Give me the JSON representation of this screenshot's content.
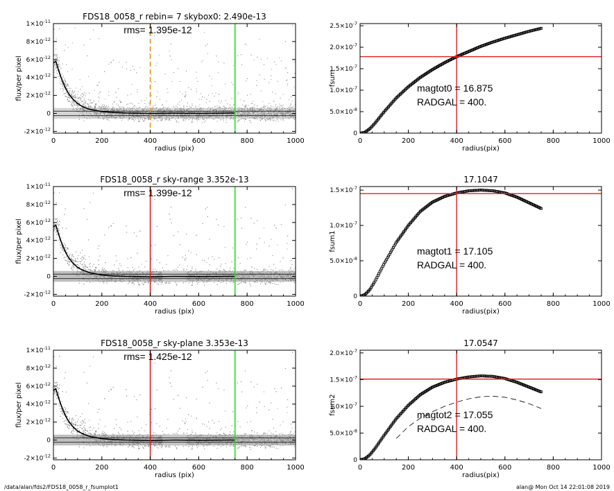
{
  "footer": {
    "path": "/data/alan/fds2/FDS18_0058_r_fsumplot1",
    "user_time": "alan@  Mon Oct 14 22:01:08 2019"
  },
  "colors": {
    "red": "#e02020",
    "green": "#22dd22",
    "orange": "#e39522",
    "points": "#8a8a8a",
    "profile": "#000000"
  },
  "chart_data": [
    {
      "type": "scatter",
      "title": "FDS18_0058_r rebin= 7    skybox0:  2.490e-13",
      "annotation": "rms= 1.395e-12",
      "xlabel": "radius (pix)",
      "ylabel": "flux/per pixel",
      "xlim": [
        0,
        1000
      ],
      "ylim": [
        -2.2e-12,
        1e-11
      ],
      "xticks": [
        "0",
        "200",
        "400",
        "600",
        "800",
        "1000"
      ],
      "yticks": [
        {
          "mant": "-2×10",
          "exp": "-12",
          "v": -2e-12
        },
        {
          "mant": "0",
          "exp": "",
          "v": 0
        },
        {
          "mant": "2×10",
          "exp": "-12",
          "v": 2e-12
        },
        {
          "mant": "4×10",
          "exp": "-12",
          "v": 4e-12
        },
        {
          "mant": "6×10",
          "exp": "-12",
          "v": 6e-12
        },
        {
          "mant": "8×10",
          "exp": "-12",
          "v": 8e-12
        },
        {
          "mant": "1×10",
          "exp": "-11",
          "v": 1e-11
        }
      ],
      "vlines": [
        {
          "x": 400,
          "color": "orange",
          "dashed": true
        },
        {
          "x": 750,
          "color": "green",
          "dashed": false
        }
      ],
      "hlines": [
        2.5e-13,
        -2.5e-13
      ],
      "profile": {
        "x": [
          0,
          10,
          20,
          30,
          40,
          50,
          60,
          80,
          100,
          120,
          150,
          200,
          250,
          300,
          400,
          500,
          600,
          750
        ],
        "y": [
          5.6e-12,
          5.8e-12,
          4.9e-12,
          4.1e-12,
          3.4e-12,
          2.8e-12,
          2.3e-12,
          1.6e-12,
          1.1e-12,
          7.5e-13,
          4.5e-13,
          2e-13,
          1e-13,
          5e-14,
          0.0,
          2e-14,
          0.0,
          5e-14
        ]
      }
    },
    {
      "type": "line",
      "title": "",
      "xlabel": "radius(pix)",
      "ylabel": "fsum",
      "xlim": [
        0,
        1000
      ],
      "ylim": [
        0,
        2.55e-07
      ],
      "xticks": [
        "0",
        "200",
        "400",
        "600",
        "800",
        "1000"
      ],
      "yticks": [
        {
          "mant": "0",
          "exp": "",
          "v": 0
        },
        {
          "mant": "5.0×10",
          "exp": "-8",
          "v": 5e-08
        },
        {
          "mant": "1.0×10",
          "exp": "-7",
          "v": 1e-07
        },
        {
          "mant": "1.5×10",
          "exp": "-7",
          "v": 1.5e-07
        },
        {
          "mant": "2.0×10",
          "exp": "-7",
          "v": 2e-07
        },
        {
          "mant": "2.5×10",
          "exp": "-7",
          "v": 2.5e-07
        }
      ],
      "text_lines": [
        "magtot0 =  16.875",
        "RADGAL =    400."
      ],
      "vline": 400,
      "hline": 1.78e-07,
      "curve": {
        "x": [
          0,
          20,
          40,
          60,
          80,
          100,
          150,
          200,
          250,
          300,
          350,
          400,
          450,
          500,
          550,
          600,
          650,
          700,
          750
        ],
        "y": [
          0,
          2e-09,
          1e-08,
          2.2e-08,
          3.6e-08,
          5e-08,
          8.2e-08,
          1.08e-07,
          1.3e-07,
          1.48e-07,
          1.64e-07,
          1.78e-07,
          1.9e-07,
          2.02e-07,
          2.12e-07,
          2.21e-07,
          2.29e-07,
          2.37e-07,
          2.44e-07
        ]
      },
      "dashed_curve": null
    },
    {
      "type": "scatter",
      "title": "FDS18_0058_r sky-range  3.352e-13",
      "annotation": "rms= 1.399e-12",
      "xlabel": "radius (pix)",
      "ylabel": "flux/per pixel",
      "xlim": [
        0,
        1000
      ],
      "ylim": [
        -2.2e-12,
        1e-11
      ],
      "xticks": [
        "0",
        "200",
        "400",
        "600",
        "800",
        "1000"
      ],
      "yticks": [
        {
          "mant": "-2×10",
          "exp": "-12",
          "v": -2e-12
        },
        {
          "mant": "0",
          "exp": "",
          "v": 0
        },
        {
          "mant": "2×10",
          "exp": "-12",
          "v": 2e-12
        },
        {
          "mant": "4×10",
          "exp": "-12",
          "v": 4e-12
        },
        {
          "mant": "6×10",
          "exp": "-12",
          "v": 6e-12
        },
        {
          "mant": "8×10",
          "exp": "-12",
          "v": 8e-12
        },
        {
          "mant": "1×10",
          "exp": "-11",
          "v": 1e-11
        }
      ],
      "vlines": [
        {
          "x": 400,
          "color": "red",
          "dashed": false
        },
        {
          "x": 750,
          "color": "green",
          "dashed": false
        }
      ],
      "hlines": [
        2.5e-13,
        -2.5e-13
      ],
      "profile": {
        "x": [
          0,
          10,
          20,
          30,
          40,
          50,
          60,
          80,
          100,
          120,
          150,
          200,
          250,
          300,
          400,
          500,
          600,
          750
        ],
        "y": [
          5.5e-12,
          5.7e-12,
          4.8e-12,
          4e-12,
          3.3e-12,
          2.7e-12,
          2.2e-12,
          1.5e-12,
          1e-12,
          7e-13,
          4e-13,
          1.5e-13,
          5e-14,
          0.0,
          -5e-14,
          0.0,
          -2e-14,
          0.0
        ]
      }
    },
    {
      "type": "line",
      "title": "17.1047",
      "xlabel": "radius(pix)",
      "ylabel": "fsum1",
      "xlim": [
        0,
        1000
      ],
      "ylim": [
        0,
        1.55e-07
      ],
      "xticks": [
        "0",
        "200",
        "400",
        "600",
        "800",
        "1000"
      ],
      "yticks": [
        {
          "mant": "0",
          "exp": "",
          "v": 0
        },
        {
          "mant": "5.0×10",
          "exp": "-8",
          "v": 5e-08
        },
        {
          "mant": "1.0×10",
          "exp": "-7",
          "v": 1e-07
        },
        {
          "mant": "1.5×10",
          "exp": "-7",
          "v": 1.5e-07
        }
      ],
      "text_lines": [
        "magtot1 =  17.105",
        "RADGAL =    400."
      ],
      "vline": 400,
      "hline": 1.45e-07,
      "curve": {
        "x": [
          0,
          20,
          40,
          60,
          80,
          100,
          150,
          200,
          250,
          300,
          350,
          400,
          450,
          500,
          550,
          600,
          650,
          700,
          750
        ],
        "y": [
          0,
          2e-09,
          9e-09,
          2e-08,
          3.3e-08,
          4.6e-08,
          7.6e-08,
          1e-07,
          1.2e-07,
          1.33e-07,
          1.41e-07,
          1.46e-07,
          1.49e-07,
          1.5e-07,
          1.49e-07,
          1.46e-07,
          1.4e-07,
          1.32e-07,
          1.24e-07
        ]
      },
      "dashed_curve": null
    },
    {
      "type": "scatter",
      "title": "FDS18_0058_r sky-plane  3.353e-13",
      "annotation": "rms= 1.425e-12",
      "xlabel": "radius (pix)",
      "ylabel": "flux/per pixel",
      "xlim": [
        0,
        1000
      ],
      "ylim": [
        -2.2e-12,
        1e-11
      ],
      "xticks": [
        "0",
        "200",
        "400",
        "600",
        "800",
        "1000"
      ],
      "yticks": [
        {
          "mant": "-2×10",
          "exp": "-12",
          "v": -2e-12
        },
        {
          "mant": "0",
          "exp": "",
          "v": 0
        },
        {
          "mant": "2×10",
          "exp": "-12",
          "v": 2e-12
        },
        {
          "mant": "4×10",
          "exp": "-12",
          "v": 4e-12
        },
        {
          "mant": "6×10",
          "exp": "-12",
          "v": 6e-12
        },
        {
          "mant": "8×10",
          "exp": "-12",
          "v": 8e-12
        },
        {
          "mant": "1×10",
          "exp": "-11",
          "v": 1e-11
        }
      ],
      "vlines": [
        {
          "x": 400,
          "color": "red",
          "dashed": false
        },
        {
          "x": 750,
          "color": "green",
          "dashed": false
        }
      ],
      "hlines": [
        2.5e-13,
        -2.5e-13
      ],
      "profile": {
        "x": [
          0,
          10,
          20,
          30,
          40,
          50,
          60,
          80,
          100,
          120,
          150,
          200,
          250,
          300,
          400,
          500,
          600,
          750
        ],
        "y": [
          5.5e-12,
          5.7e-12,
          4.8e-12,
          4e-12,
          3.3e-12,
          2.7e-12,
          2.2e-12,
          1.5e-12,
          1e-12,
          7e-13,
          4e-13,
          1.5e-13,
          5e-14,
          0.0,
          -5e-14,
          0.0,
          -2e-14,
          0.0
        ]
      }
    },
    {
      "type": "line",
      "title": "17.0547",
      "xlabel": "radius(pix)",
      "ylabel": "fsum2",
      "xlim": [
        0,
        1000
      ],
      "ylim": [
        0,
        2.05e-07
      ],
      "xticks": [
        "0",
        "200",
        "400",
        "600",
        "800",
        "1000"
      ],
      "yticks": [
        {
          "mant": "0",
          "exp": "",
          "v": 0
        },
        {
          "mant": "5.0×10",
          "exp": "-8",
          "v": 5e-08
        },
        {
          "mant": "1.0×10",
          "exp": "-7",
          "v": 1e-07
        },
        {
          "mant": "1.5×10",
          "exp": "-7",
          "v": 1.5e-07
        },
        {
          "mant": "2.0×10",
          "exp": "-7",
          "v": 2e-07
        }
      ],
      "text_lines": [
        "magtot2 =  17.055",
        "RADGAL =    400."
      ],
      "vline": 400,
      "hline": 1.51e-07,
      "curve": {
        "x": [
          0,
          20,
          40,
          60,
          80,
          100,
          150,
          200,
          250,
          300,
          350,
          400,
          450,
          500,
          550,
          600,
          650,
          700,
          750
        ],
        "y": [
          0,
          2e-09,
          9e-09,
          2e-08,
          3.3e-08,
          4.6e-08,
          7.7e-08,
          1.02e-07,
          1.22e-07,
          1.36e-07,
          1.45e-07,
          1.51e-07,
          1.55e-07,
          1.57e-07,
          1.56e-07,
          1.52e-07,
          1.45e-07,
          1.36e-07,
          1.27e-07
        ]
      },
      "dashed_curve": {
        "x": [
          150,
          200,
          250,
          300,
          350,
          400,
          450,
          500,
          550,
          600,
          650,
          700,
          750
        ],
        "y": [
          4e-08,
          6.2e-08,
          7.8e-08,
          9e-08,
          1e-07,
          1.08e-07,
          1.14e-07,
          1.18e-07,
          1.19e-07,
          1.17e-07,
          1.12e-07,
          1.05e-07,
          9.6e-08
        ]
      }
    }
  ]
}
